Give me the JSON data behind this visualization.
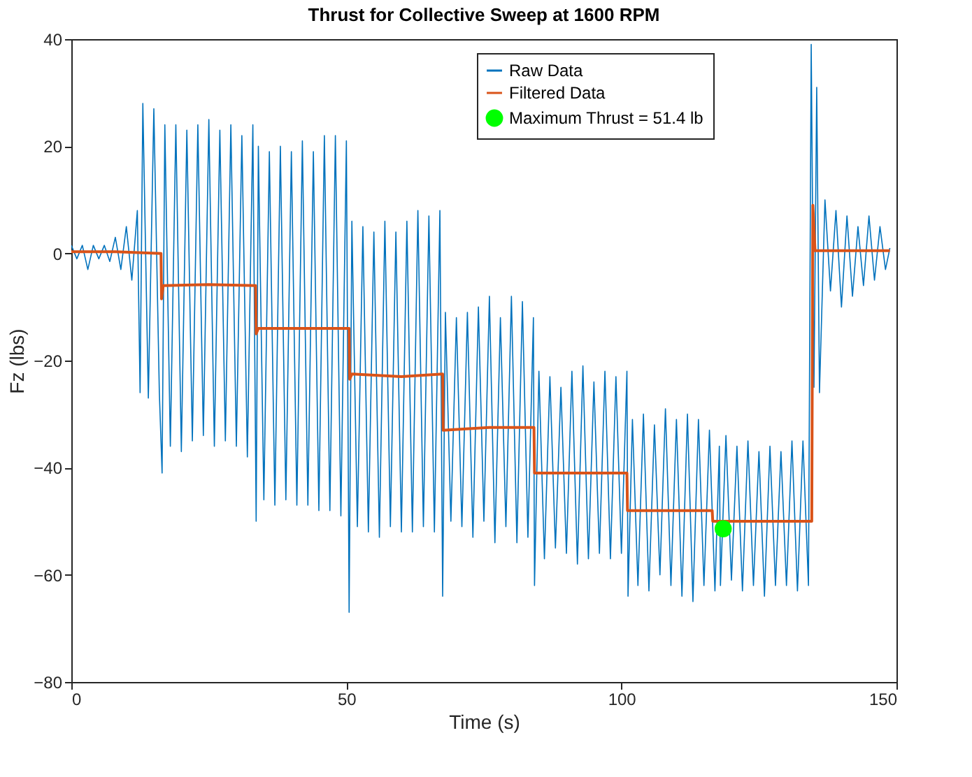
{
  "chart_data": {
    "type": "line",
    "title": "Thrust for Collective Sweep at 1600 RPM",
    "xlabel": "Time (s)",
    "ylabel": "Fz (lbs)",
    "xlim": [
      0,
      150
    ],
    "xticks": [
      0,
      50,
      100,
      150
    ],
    "ylim": [
      -80,
      40
    ],
    "yticks": [
      -80,
      -60,
      -40,
      -20,
      0,
      20,
      40
    ],
    "grid": false,
    "legend": "top right",
    "series": [
      {
        "name": "Raw Data",
        "color": "#0072bd",
        "x": [
          0,
          1,
          2,
          3,
          4,
          5,
          6,
          7,
          8,
          9,
          10,
          11,
          12,
          12.5,
          13,
          14,
          15,
          16,
          16.5,
          17,
          18,
          19,
          20,
          21,
          22,
          23,
          24,
          25,
          26,
          27,
          28,
          29,
          30,
          31,
          32,
          33,
          33.6,
          34,
          35,
          36,
          37,
          38,
          39,
          40,
          41,
          42,
          43,
          44,
          45,
          46,
          47,
          48,
          49,
          50,
          50.5,
          51,
          52,
          53,
          54,
          55,
          56,
          57,
          58,
          59,
          60,
          61,
          62,
          63,
          64,
          65,
          66,
          67,
          67.5,
          68,
          69,
          70,
          71,
          72,
          73,
          74,
          75,
          76,
          77,
          78,
          79,
          80,
          81,
          82,
          83,
          84,
          84.2,
          85,
          86,
          87,
          88,
          89,
          90,
          91,
          92,
          93,
          94,
          95,
          96,
          97,
          98,
          99,
          100,
          101,
          101.2,
          102,
          103,
          104,
          105,
          106,
          107,
          108,
          109,
          110,
          111,
          112,
          113,
          114,
          115,
          116,
          117,
          117.8,
          118,
          119,
          120,
          121,
          122,
          123,
          124,
          125,
          126,
          127,
          128,
          129,
          130,
          131,
          132,
          133,
          134,
          134.5,
          135,
          135.5,
          136,
          137,
          138,
          139,
          140,
          141,
          142,
          143,
          144,
          145,
          146,
          147,
          148,
          148.8
        ],
        "values": [
          1.5,
          -1,
          1.5,
          -3,
          1.5,
          -1,
          1.5,
          -1.5,
          3,
          -3,
          5,
          -5,
          8,
          -26,
          28,
          -27,
          27,
          -26,
          -41,
          24,
          -36,
          24,
          -37,
          23,
          -35,
          24,
          -34,
          25,
          -36,
          23,
          -35,
          24,
          -36,
          22,
          -38,
          24,
          -50,
          20,
          -46,
          19,
          -47,
          20,
          -46,
          19,
          -47,
          21,
          -47,
          19,
          -48,
          22,
          -48,
          22,
          -49,
          21,
          -67,
          6,
          -51,
          5,
          -52,
          4,
          -53,
          6,
          -51,
          4,
          -52,
          6,
          -52,
          8,
          -51,
          7,
          -52,
          8,
          -64,
          -11,
          -50,
          -12,
          -51,
          -11,
          -53,
          -10,
          -50,
          -8,
          -54,
          -12,
          -51,
          -8,
          -54,
          -9,
          -53,
          -12,
          -62,
          -22,
          -57,
          -23,
          -55,
          -25,
          -56,
          -22,
          -58,
          -21,
          -57,
          -24,
          -56,
          -22,
          -57,
          -23,
          -56,
          -22,
          -64,
          -31,
          -62,
          -30,
          -63,
          -32,
          -60,
          -29,
          -62,
          -31,
          -64,
          -30,
          -65,
          -31,
          -62,
          -33,
          -63,
          -36,
          -62,
          -34,
          -61,
          -36,
          -63,
          -35,
          -62,
          -37,
          -64,
          -36,
          -62,
          -37,
          -62,
          -35,
          -63,
          -35,
          -62,
          39,
          -25,
          31,
          -26,
          10,
          -7,
          8,
          -10,
          7,
          -8,
          5,
          -6,
          7,
          -5,
          5,
          -3,
          1
        ]
      },
      {
        "name": "Filtered Data",
        "color": "#d95319",
        "x": [
          0,
          8,
          16.3,
          16.4,
          16.7,
          25,
          33.5,
          33.6,
          34,
          42,
          50.5,
          50.6,
          51,
          60,
          67.5,
          67.6,
          76,
          84.1,
          84.2,
          92,
          101,
          101.1,
          110,
          116.5,
          116.6,
          119,
          126,
          134.6,
          134.8,
          135.2,
          148.8
        ],
        "values": [
          0.3,
          0.3,
          0,
          -8.5,
          -6,
          -5.8,
          -6,
          -15,
          -14,
          -14,
          -14,
          -23.5,
          -22.5,
          -23,
          -22.5,
          -33,
          -32.5,
          -32.5,
          -41,
          -41,
          -41,
          -48,
          -48,
          -48,
          -50,
          -50,
          -50,
          -50,
          9,
          0.5,
          0.5
        ]
      },
      {
        "name": "Maximum Thrust = 51.4 lb",
        "type": "scatter",
        "marker": "circle",
        "color": "#00ff00",
        "x": [
          118.5
        ],
        "values": [
          -51.4
        ]
      }
    ]
  }
}
